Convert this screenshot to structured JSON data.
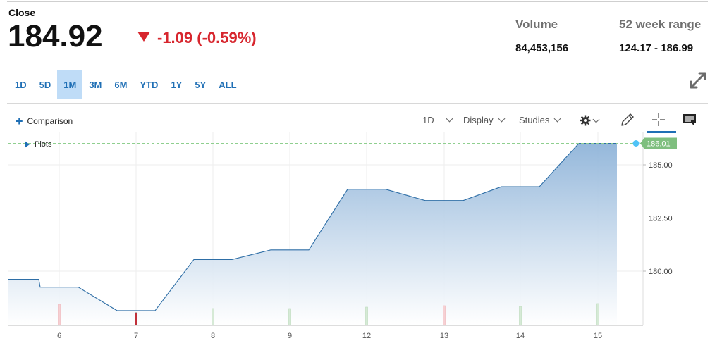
{
  "quote": {
    "close_label": "Close",
    "price": "184.92",
    "change": "-1.09 (-0.59%)",
    "direction": "down",
    "color_down": "#d7262e"
  },
  "stats": {
    "volume_label": "Volume",
    "volume_value": "84,453,156",
    "range_label": "52 week range",
    "range_value": "124.17 - 186.99"
  },
  "ranges": {
    "items": [
      "1D",
      "5D",
      "1M",
      "3M",
      "6M",
      "YTD",
      "1Y",
      "5Y",
      "ALL"
    ],
    "selected": "1M"
  },
  "toolbar": {
    "comparison_label": "Comparison",
    "interval_label": "1D",
    "display_label": "Display",
    "studies_label": "Studies",
    "plots_label": "Plots",
    "accent": "#1f6fb5"
  },
  "chart_data": {
    "type": "area",
    "x_ticks": [
      "6",
      "7",
      "8",
      "9",
      "12",
      "13",
      "14",
      "15"
    ],
    "y_ticks": [
      "185.00",
      "182.50",
      "180.00"
    ],
    "ylim": [
      177.5,
      186.5
    ],
    "last_value_label": "186.01",
    "series": [
      {
        "points": [
          [
            "5",
            179.62
          ],
          [
            "5",
            179.62
          ],
          [
            "6",
            179.25
          ],
          [
            "6",
            179.25
          ],
          [
            "7",
            178.15
          ],
          [
            "7",
            178.15
          ],
          [
            "8",
            180.55
          ],
          [
            "8",
            180.55
          ],
          [
            "9",
            181.0
          ],
          [
            "9",
            181.0
          ],
          [
            "12",
            183.85
          ],
          [
            "12",
            183.85
          ],
          [
            "13",
            183.32
          ],
          [
            "13",
            183.32
          ],
          [
            "14",
            183.97
          ],
          [
            "14",
            183.97
          ],
          [
            "15",
            186.01
          ],
          [
            "15",
            186.01
          ]
        ]
      }
    ],
    "volume_bars": [
      {
        "x": "6",
        "direction": "down"
      },
      {
        "x": "7",
        "direction": "down"
      },
      {
        "x": "8",
        "direction": "up"
      },
      {
        "x": "9",
        "direction": "up"
      },
      {
        "x": "12",
        "direction": "up"
      },
      {
        "x": "13",
        "direction": "down"
      },
      {
        "x": "14",
        "direction": "up"
      },
      {
        "x": "15",
        "direction": "up"
      }
    ],
    "line_color": "#2e6ea6",
    "fill_color": "#8fb4d9",
    "grid": true
  }
}
